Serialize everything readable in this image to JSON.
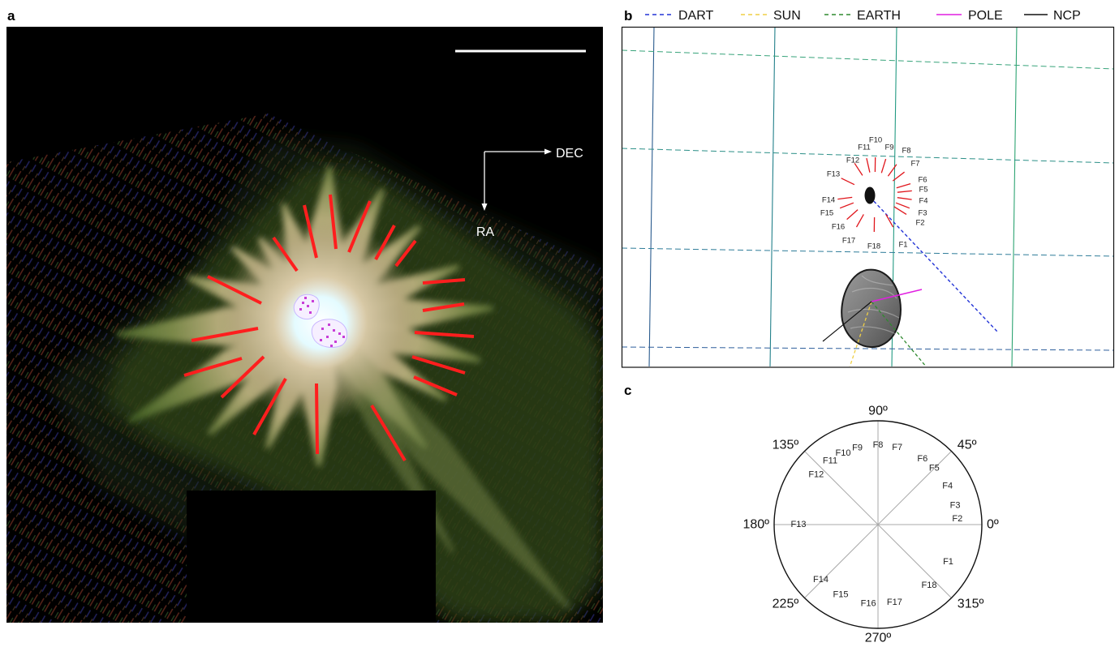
{
  "panel_labels": {
    "a": "a",
    "b": "b",
    "c": "c"
  },
  "panel_a": {
    "compass": {
      "dec_label": "DEC",
      "ra_label": "RA"
    },
    "feature_line_color": "#ff1e1e"
  },
  "panel_b": {
    "legend": [
      {
        "label": "DART",
        "color": "#2233d6",
        "dashed": true
      },
      {
        "label": "SUN",
        "color": "#efcf45",
        "dashed": true
      },
      {
        "label": "EARTH",
        "color": "#2f8a2f",
        "dashed": true
      },
      {
        "label": "POLE",
        "color": "#e11fe1",
        "dashed": false
      },
      {
        "label": "NCP",
        "color": "#111111",
        "dashed": false
      }
    ],
    "features": [
      "F1",
      "F2",
      "F3",
      "F4",
      "F5",
      "F6",
      "F7",
      "F8",
      "F9",
      "F10",
      "F11",
      "F12",
      "F13",
      "F14",
      "F15",
      "F16",
      "F17",
      "F18"
    ],
    "feature_line_color": "#e0161c"
  },
  "panel_c": {
    "angle_ticks": [
      {
        "label": "0º",
        "angle": 0
      },
      {
        "label": "45º",
        "angle": 45
      },
      {
        "label": "90º",
        "angle": 90
      },
      {
        "label": "135º",
        "angle": 135
      },
      {
        "label": "180º",
        "angle": 180
      },
      {
        "label": "225º",
        "angle": 225
      },
      {
        "label": "270º",
        "angle": 270
      },
      {
        "label": "315º",
        "angle": 315
      }
    ],
    "features": [
      {
        "label": "F1",
        "angle": 332
      },
      {
        "label": "F2",
        "angle": 4
      },
      {
        "label": "F3",
        "angle": 14
      },
      {
        "label": "F4",
        "angle": 29
      },
      {
        "label": "F5",
        "angle": 45
      },
      {
        "label": "F6",
        "angle": 56
      },
      {
        "label": "F7",
        "angle": 76
      },
      {
        "label": "F8",
        "angle": 90
      },
      {
        "label": "F9",
        "angle": 105
      },
      {
        "label": "F10",
        "angle": 116
      },
      {
        "label": "F11",
        "angle": 127
      },
      {
        "label": "F12",
        "angle": 141
      },
      {
        "label": "F13",
        "angle": 180
      },
      {
        "label": "F14",
        "angle": 224
      },
      {
        "label": "F15",
        "angle": 242
      },
      {
        "label": "F16",
        "angle": 263
      },
      {
        "label": "F17",
        "angle": 282
      },
      {
        "label": "F18",
        "angle": 310
      }
    ]
  }
}
